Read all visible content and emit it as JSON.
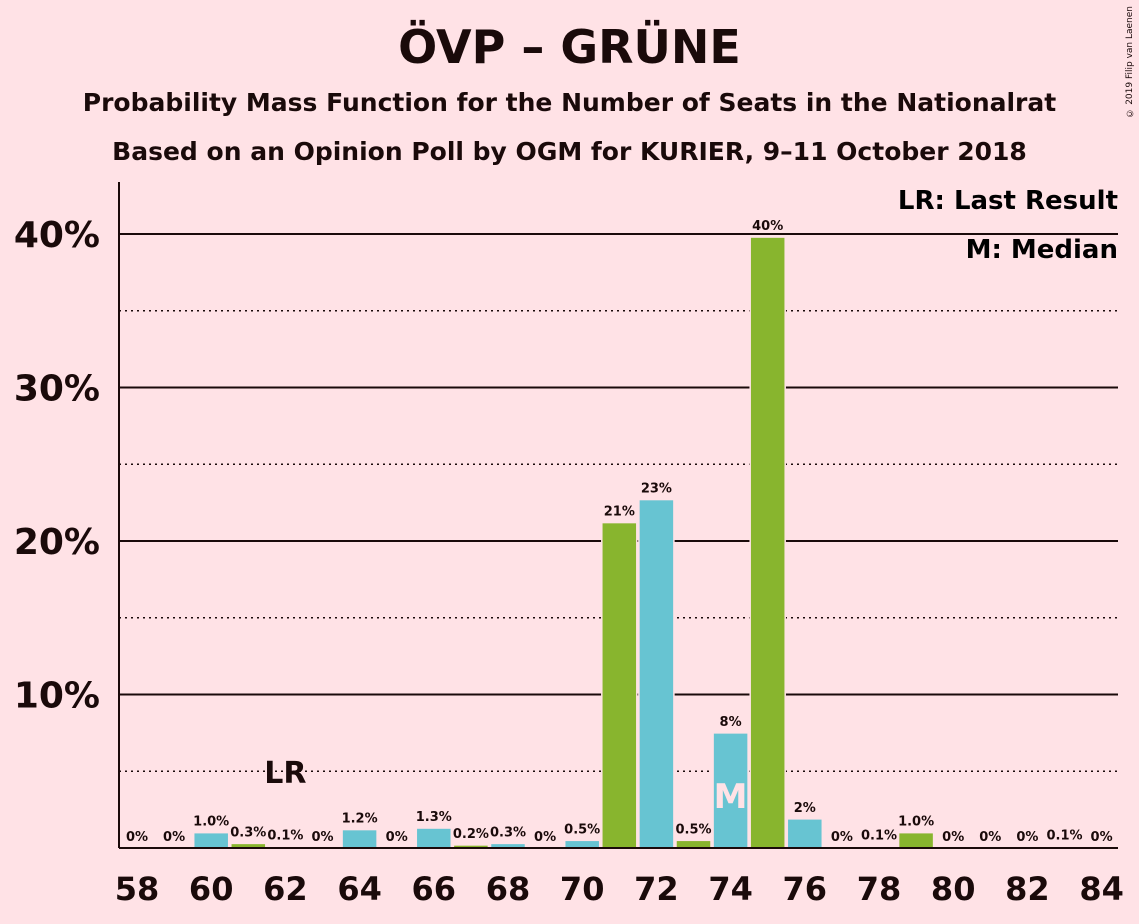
{
  "title": "ÖVP – GRÜNE",
  "subtitle1": "Probability Mass Function for the Number of Seats in the Nationalrat",
  "subtitle2": "Based on an Opinion Poll by OGM for KURIER, 9–11 October 2018",
  "copyright": "© 2019 Filip van Laenen",
  "legend": {
    "last_result": "LR: Last Result",
    "median": "M: Median"
  },
  "markers": {
    "last_result_label": "LR",
    "last_result_seat": 62,
    "median_label": "M",
    "median_seat": 74
  },
  "colors": {
    "background": "#FFE2E6",
    "bar_blue": "#67C4D2",
    "bar_green": "#88B52E",
    "text": "#1a0a0a"
  },
  "chart_data": {
    "type": "bar",
    "ylim": [
      0,
      43
    ],
    "yticks": [
      10,
      20,
      30,
      40
    ],
    "ytick_labels": [
      "10%",
      "20%",
      "30%",
      "40%"
    ],
    "dotted_lines": [
      5,
      15,
      25,
      35
    ],
    "xticks": [
      58,
      60,
      62,
      64,
      66,
      68,
      70,
      72,
      74,
      76,
      78,
      80,
      82,
      84
    ],
    "bars": [
      {
        "seat": 58,
        "value": 0,
        "label": "0%",
        "color": "blue"
      },
      {
        "seat": 59,
        "value": 0,
        "label": "0%",
        "color": "blue"
      },
      {
        "seat": 60,
        "value": 1.0,
        "label": "1.0%",
        "color": "blue"
      },
      {
        "seat": 61,
        "value": 0.3,
        "label": "0.3%",
        "color": "green"
      },
      {
        "seat": 62,
        "value": 0.1,
        "label": "0.1%",
        "color": "blue"
      },
      {
        "seat": 63,
        "value": 0,
        "label": "0%",
        "color": "blue"
      },
      {
        "seat": 64,
        "value": 1.2,
        "label": "1.2%",
        "color": "blue"
      },
      {
        "seat": 65,
        "value": 0,
        "label": "0%",
        "color": "blue"
      },
      {
        "seat": 66,
        "value": 1.3,
        "label": "1.3%",
        "color": "blue"
      },
      {
        "seat": 67,
        "value": 0.2,
        "label": "0.2%",
        "color": "green"
      },
      {
        "seat": 68,
        "value": 0.3,
        "label": "0.3%",
        "color": "blue"
      },
      {
        "seat": 69,
        "value": 0,
        "label": "0%",
        "color": "blue"
      },
      {
        "seat": 70,
        "value": 0.5,
        "label": "0.5%",
        "color": "blue"
      },
      {
        "seat": 71,
        "value": 21.2,
        "label": "21%",
        "color": "green"
      },
      {
        "seat": 72,
        "value": 22.7,
        "label": "23%",
        "color": "blue"
      },
      {
        "seat": 73,
        "value": 0.5,
        "label": "0.5%",
        "color": "green"
      },
      {
        "seat": 74,
        "value": 7.5,
        "label": "8%",
        "color": "blue"
      },
      {
        "seat": 75,
        "value": 39.8,
        "label": "40%",
        "color": "green"
      },
      {
        "seat": 76,
        "value": 1.9,
        "label": "2%",
        "color": "blue"
      },
      {
        "seat": 77,
        "value": 0,
        "label": "0%",
        "color": "blue"
      },
      {
        "seat": 78,
        "value": 0.1,
        "label": "0.1%",
        "color": "blue"
      },
      {
        "seat": 79,
        "value": 1.0,
        "label": "1.0%",
        "color": "green"
      },
      {
        "seat": 80,
        "value": 0,
        "label": "0%",
        "color": "blue"
      },
      {
        "seat": 81,
        "value": 0,
        "label": "0%",
        "color": "blue"
      },
      {
        "seat": 82,
        "value": 0,
        "label": "0%",
        "color": "blue"
      },
      {
        "seat": 83,
        "value": 0.1,
        "label": "0.1%",
        "color": "blue"
      },
      {
        "seat": 84,
        "value": 0,
        "label": "0%",
        "color": "blue"
      }
    ]
  }
}
